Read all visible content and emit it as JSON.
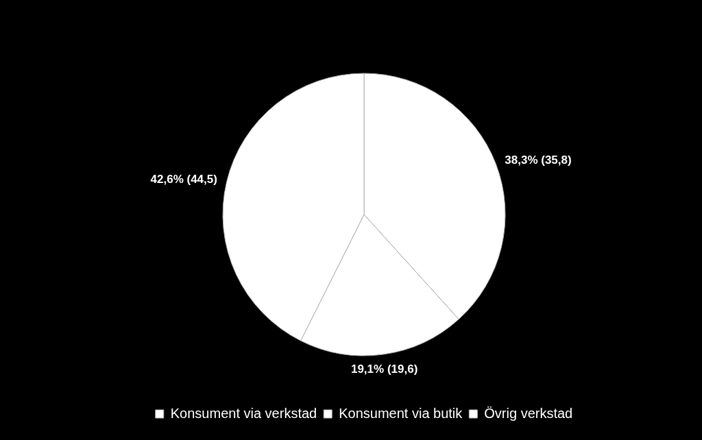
{
  "chart_data": {
    "type": "pie",
    "categories": [
      "Konsument via verkstad",
      "Konsument via butik",
      "Övrig verkstad"
    ],
    "values": [
      38.3,
      19.1,
      42.6
    ],
    "value_labels": [
      "38,3% (35,8)",
      "19,1% (19,6)",
      "42,6% (44,5)"
    ],
    "colors": [
      "#ffffff",
      "#ffffff",
      "#ffffff"
    ],
    "data_labels": true,
    "legend": "bottom"
  }
}
